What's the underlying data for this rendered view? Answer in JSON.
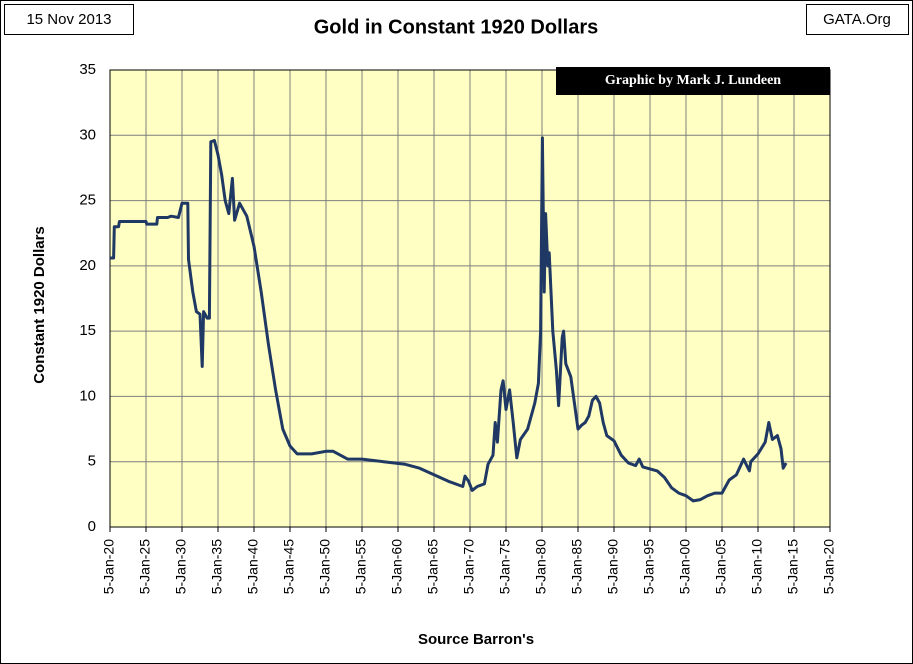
{
  "chart_data": {
    "type": "line",
    "title": "Gold in Constant 1920 Dollars",
    "date_note": "15 Nov 2013",
    "source_note": "GATA.Org",
    "credit": "Graphic by Mark J. Lundeen",
    "ylabel": "Constant 1920 Dollars",
    "xlabel": "Source Barron's",
    "grid": true,
    "background": "#ffffc4",
    "x": [
      1920,
      1920.5,
      1920.6,
      1921.2,
      1921.3,
      1925,
      1925.1,
      1926.5,
      1926.6,
      1928,
      1928.5,
      1929.5,
      1930,
      1930.8,
      1930.9,
      1931.5,
      1932,
      1932.5,
      1932.8,
      1933,
      1933.5,
      1933.8,
      1934,
      1934.5,
      1935,
      1935.5,
      1936,
      1936.5,
      1937,
      1937.3,
      1938,
      1939,
      1940,
      1941,
      1942,
      1943,
      1944,
      1945,
      1946,
      1948,
      1950,
      1951,
      1952,
      1953,
      1955,
      1958,
      1961,
      1963,
      1965,
      1967,
      1969,
      1969.3,
      1969.8,
      1970.3,
      1971,
      1972,
      1972.5,
      1973.2,
      1973.5,
      1973.8,
      1974.3,
      1974.6,
      1975,
      1975.5,
      1976,
      1976.5,
      1977,
      1978,
      1979,
      1979.5,
      1979.8,
      1980.05,
      1980.3,
      1980.5,
      1980.8,
      1981,
      1981.5,
      1982,
      1982.3,
      1982.8,
      1983,
      1983.3,
      1984,
      1984.5,
      1985,
      1985.5,
      1986,
      1986.5,
      1987,
      1987.5,
      1988,
      1988.5,
      1989,
      1990,
      1991,
      1992,
      1993,
      1993.5,
      1994,
      1996,
      1997,
      1998,
      1999,
      2000,
      2001,
      2002,
      2003,
      2004,
      2005,
      2006,
      2007,
      2008,
      2008.8,
      2009,
      2010,
      2011,
      2011.5,
      2012,
      2012.7,
      2013.2,
      2013.5,
      2013.9
    ],
    "series": [
      {
        "name": "Gold",
        "color": "#1f3864",
        "values": [
          20.6,
          20.6,
          23,
          23,
          23.4,
          23.4,
          23.2,
          23.2,
          23.7,
          23.7,
          23.8,
          23.7,
          24.8,
          24.8,
          20.5,
          18,
          16.5,
          16.3,
          12.3,
          16.5,
          16,
          16,
          29.5,
          29.6,
          28.5,
          27,
          25,
          24,
          26.7,
          23.5,
          24.8,
          23.8,
          21.5,
          18,
          14,
          10.5,
          7.5,
          6.2,
          5.6,
          5.6,
          5.8,
          5.8,
          5.5,
          5.2,
          5.2,
          5.0,
          4.8,
          4.5,
          4.0,
          3.5,
          3.1,
          3.9,
          3.5,
          2.8,
          3.1,
          3.3,
          4.8,
          5.5,
          8,
          6.5,
          10.5,
          11.2,
          9,
          10.5,
          8,
          5.3,
          6.7,
          7.5,
          9.5,
          11,
          15,
          29.8,
          18,
          24,
          20,
          21,
          15,
          12,
          9.3,
          14.5,
          15,
          12.5,
          11.5,
          9.5,
          7.5,
          7.8,
          8,
          8.5,
          9.7,
          10,
          9.5,
          8,
          7,
          6.6,
          5.5,
          4.9,
          4.7,
          5.2,
          4.6,
          4.3,
          3.8,
          3.0,
          2.6,
          2.4,
          2.0,
          2.1,
          2.4,
          2.6,
          2.6,
          3.6,
          4.0,
          5.2,
          4.3,
          5.0,
          5.6,
          6.5,
          8.0,
          6.7,
          7.0,
          6.0,
          4.5,
          4.9
        ]
      }
    ],
    "xlim": [
      1920,
      2020
    ],
    "xticks": [
      {
        "value": 1920,
        "label": "5-Jan-20"
      },
      {
        "value": 1925,
        "label": "5-Jan-25"
      },
      {
        "value": 1930,
        "label": "5-Jan-30"
      },
      {
        "value": 1935,
        "label": "5-Jan-35"
      },
      {
        "value": 1940,
        "label": "5-Jan-40"
      },
      {
        "value": 1945,
        "label": "5-Jan-45"
      },
      {
        "value": 1950,
        "label": "5-Jan-50"
      },
      {
        "value": 1955,
        "label": "5-Jan-55"
      },
      {
        "value": 1960,
        "label": "5-Jan-60"
      },
      {
        "value": 1965,
        "label": "5-Jan-65"
      },
      {
        "value": 1970,
        "label": "5-Jan-70"
      },
      {
        "value": 1975,
        "label": "5-Jan-75"
      },
      {
        "value": 1980,
        "label": "5-Jan-80"
      },
      {
        "value": 1985,
        "label": "5-Jan-85"
      },
      {
        "value": 1990,
        "label": "5-Jan-90"
      },
      {
        "value": 1995,
        "label": "5-Jan-95"
      },
      {
        "value": 2000,
        "label": "5-Jan-00"
      },
      {
        "value": 2005,
        "label": "5-Jan-05"
      },
      {
        "value": 2010,
        "label": "5-Jan-10"
      },
      {
        "value": 2015,
        "label": "5-Jan-15"
      },
      {
        "value": 2020,
        "label": "5-Jan-20"
      }
    ],
    "ylim": [
      0,
      35
    ],
    "yticks": [
      0,
      5,
      10,
      15,
      20,
      25,
      30,
      35
    ]
  }
}
